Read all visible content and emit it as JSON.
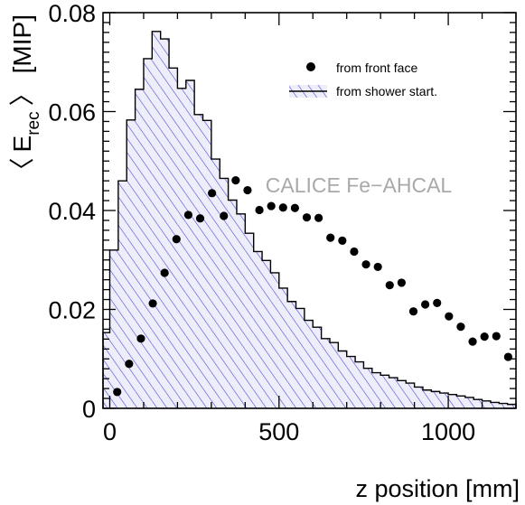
{
  "chart_data": {
    "type": "scatter",
    "watermark": "CALICE Fe−AHCAL",
    "xlabel": "z position [mm]",
    "ylabel": {
      "open": "〈",
      "E": "E",
      "sub": "rec",
      "close": "〉",
      "unit": "[MIP]"
    },
    "xlim": [
      -20,
      1200
    ],
    "ylim": [
      0,
      0.08
    ],
    "x_ticks": [
      0,
      500,
      1000
    ],
    "x_tick_labels": [
      "0",
      "500",
      "1000"
    ],
    "y_ticks": [
      0,
      0.02,
      0.04,
      0.06,
      0.08
    ],
    "y_tick_labels": [
      "0",
      "0.02",
      "0.04",
      "0.06",
      "0.08"
    ],
    "grid": false,
    "legend": {
      "placement": "top-right",
      "entries": [
        "from front face",
        "from shower start."
      ]
    },
    "colors": {
      "hatch": "#4a4ad0",
      "fill": "#eeeefb",
      "points": "#000000",
      "watermark": "#a9a9a9"
    },
    "series": [
      {
        "name": "from front face",
        "style": "points",
        "x": [
          22,
          57,
          92,
          127,
          162,
          197,
          232,
          267,
          302,
          337,
          372,
          407,
          442,
          477,
          512,
          547,
          582,
          617,
          652,
          687,
          722,
          757,
          792,
          827,
          862,
          897,
          932,
          967,
          1002,
          1037,
          1072,
          1107,
          1142,
          1177
        ],
        "y": [
          0.0033,
          0.009,
          0.0141,
          0.0212,
          0.0274,
          0.0342,
          0.0391,
          0.0384,
          0.0435,
          0.0389,
          0.0461,
          0.0441,
          0.0401,
          0.0409,
          0.0406,
          0.0405,
          0.0386,
          0.0385,
          0.0345,
          0.0339,
          0.0317,
          0.0291,
          0.0286,
          0.0249,
          0.0254,
          0.0196,
          0.021,
          0.0213,
          0.0186,
          0.0165,
          0.0135,
          0.0145,
          0.0146,
          0.0104
        ]
      },
      {
        "name": "from shower start.",
        "style": "step-histogram",
        "edges": [
          -20,
          0,
          25,
          50,
          75,
          100,
          125,
          150,
          175,
          200,
          225,
          250,
          275,
          300,
          325,
          350,
          375,
          400,
          425,
          450,
          475,
          500,
          525,
          550,
          575,
          600,
          625,
          650,
          675,
          700,
          725,
          750,
          775,
          800,
          825,
          850,
          875,
          900,
          925,
          950,
          975,
          1000,
          1025,
          1050,
          1075,
          1100,
          1125,
          1150,
          1175,
          1200
        ],
        "values": [
          0.0153,
          0.032,
          0.046,
          0.0583,
          0.0645,
          0.0707,
          0.0762,
          0.0747,
          0.0688,
          0.0647,
          0.0663,
          0.0594,
          0.0582,
          0.0504,
          0.0465,
          0.0421,
          0.0393,
          0.0354,
          0.0317,
          0.0299,
          0.0274,
          0.0243,
          0.0216,
          0.0202,
          0.0178,
          0.0164,
          0.0141,
          0.0133,
          0.0116,
          0.0105,
          0.0094,
          0.0081,
          0.0072,
          0.0067,
          0.0062,
          0.0056,
          0.0051,
          0.0043,
          0.0037,
          0.0034,
          0.0031,
          0.0028,
          0.0025,
          0.0022,
          0.0018,
          0.0015,
          0.0012,
          0.001,
          0.0008
        ]
      }
    ]
  }
}
